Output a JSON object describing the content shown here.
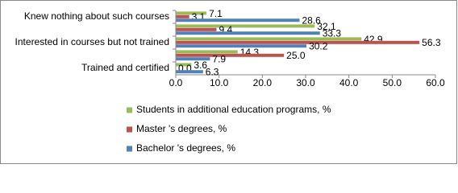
{
  "chart_data": {
    "type": "hbar",
    "categories": [
      "Knew nothing about such courses",
      null,
      "Interested in courses but not trained",
      null,
      "Trained and certified"
    ],
    "series": [
      {
        "name": "Students in additional education programs, %",
        "color": "#9bbb59",
        "values": [
          7.1,
          32.1,
          42.9,
          14.3,
          3.6
        ],
        "value_labels": [
          "7.1",
          "32.1",
          "42.9",
          "14.3",
          "3.6"
        ]
      },
      {
        "name": "Master 's degrees, %",
        "color": "#c0504d",
        "values": [
          3.1,
          9.4,
          56.3,
          25.0,
          0.0
        ],
        "value_labels": [
          "3.1",
          "9.4",
          "56.3",
          "25.0",
          "0.0"
        ]
      },
      {
        "name": "Bachelor 's degrees, %",
        "color": "#4f81bd",
        "values": [
          28.6,
          33.3,
          30.2,
          7.9,
          6.3
        ],
        "value_labels": [
          "28.6",
          "33.3",
          "30.2",
          "7.9",
          "6.3"
        ]
      }
    ],
    "xlim": [
      0,
      60
    ],
    "xticks": [
      {
        "value": 0,
        "label": "0.0"
      },
      {
        "value": 10,
        "label": "10.0"
      },
      {
        "value": 20,
        "label": "20.0"
      },
      {
        "value": 30,
        "label": "30.0"
      },
      {
        "value": 40,
        "label": "40.0"
      },
      {
        "value": 50,
        "label": "50.0"
      },
      {
        "value": 60,
        "label": "60.0"
      }
    ],
    "grid": false,
    "legend": "bottom"
  }
}
